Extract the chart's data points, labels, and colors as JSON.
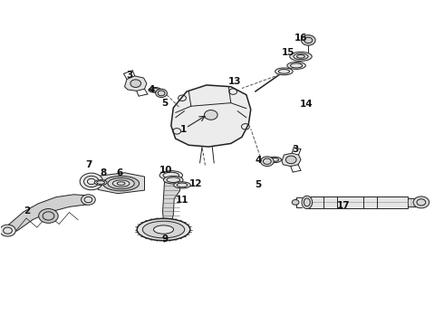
{
  "bg_color": "#ffffff",
  "line_color": "#222222",
  "text_color": "#111111",
  "fig_width": 4.9,
  "fig_height": 3.6,
  "dpi": 100,
  "label_fs": 7.5
}
